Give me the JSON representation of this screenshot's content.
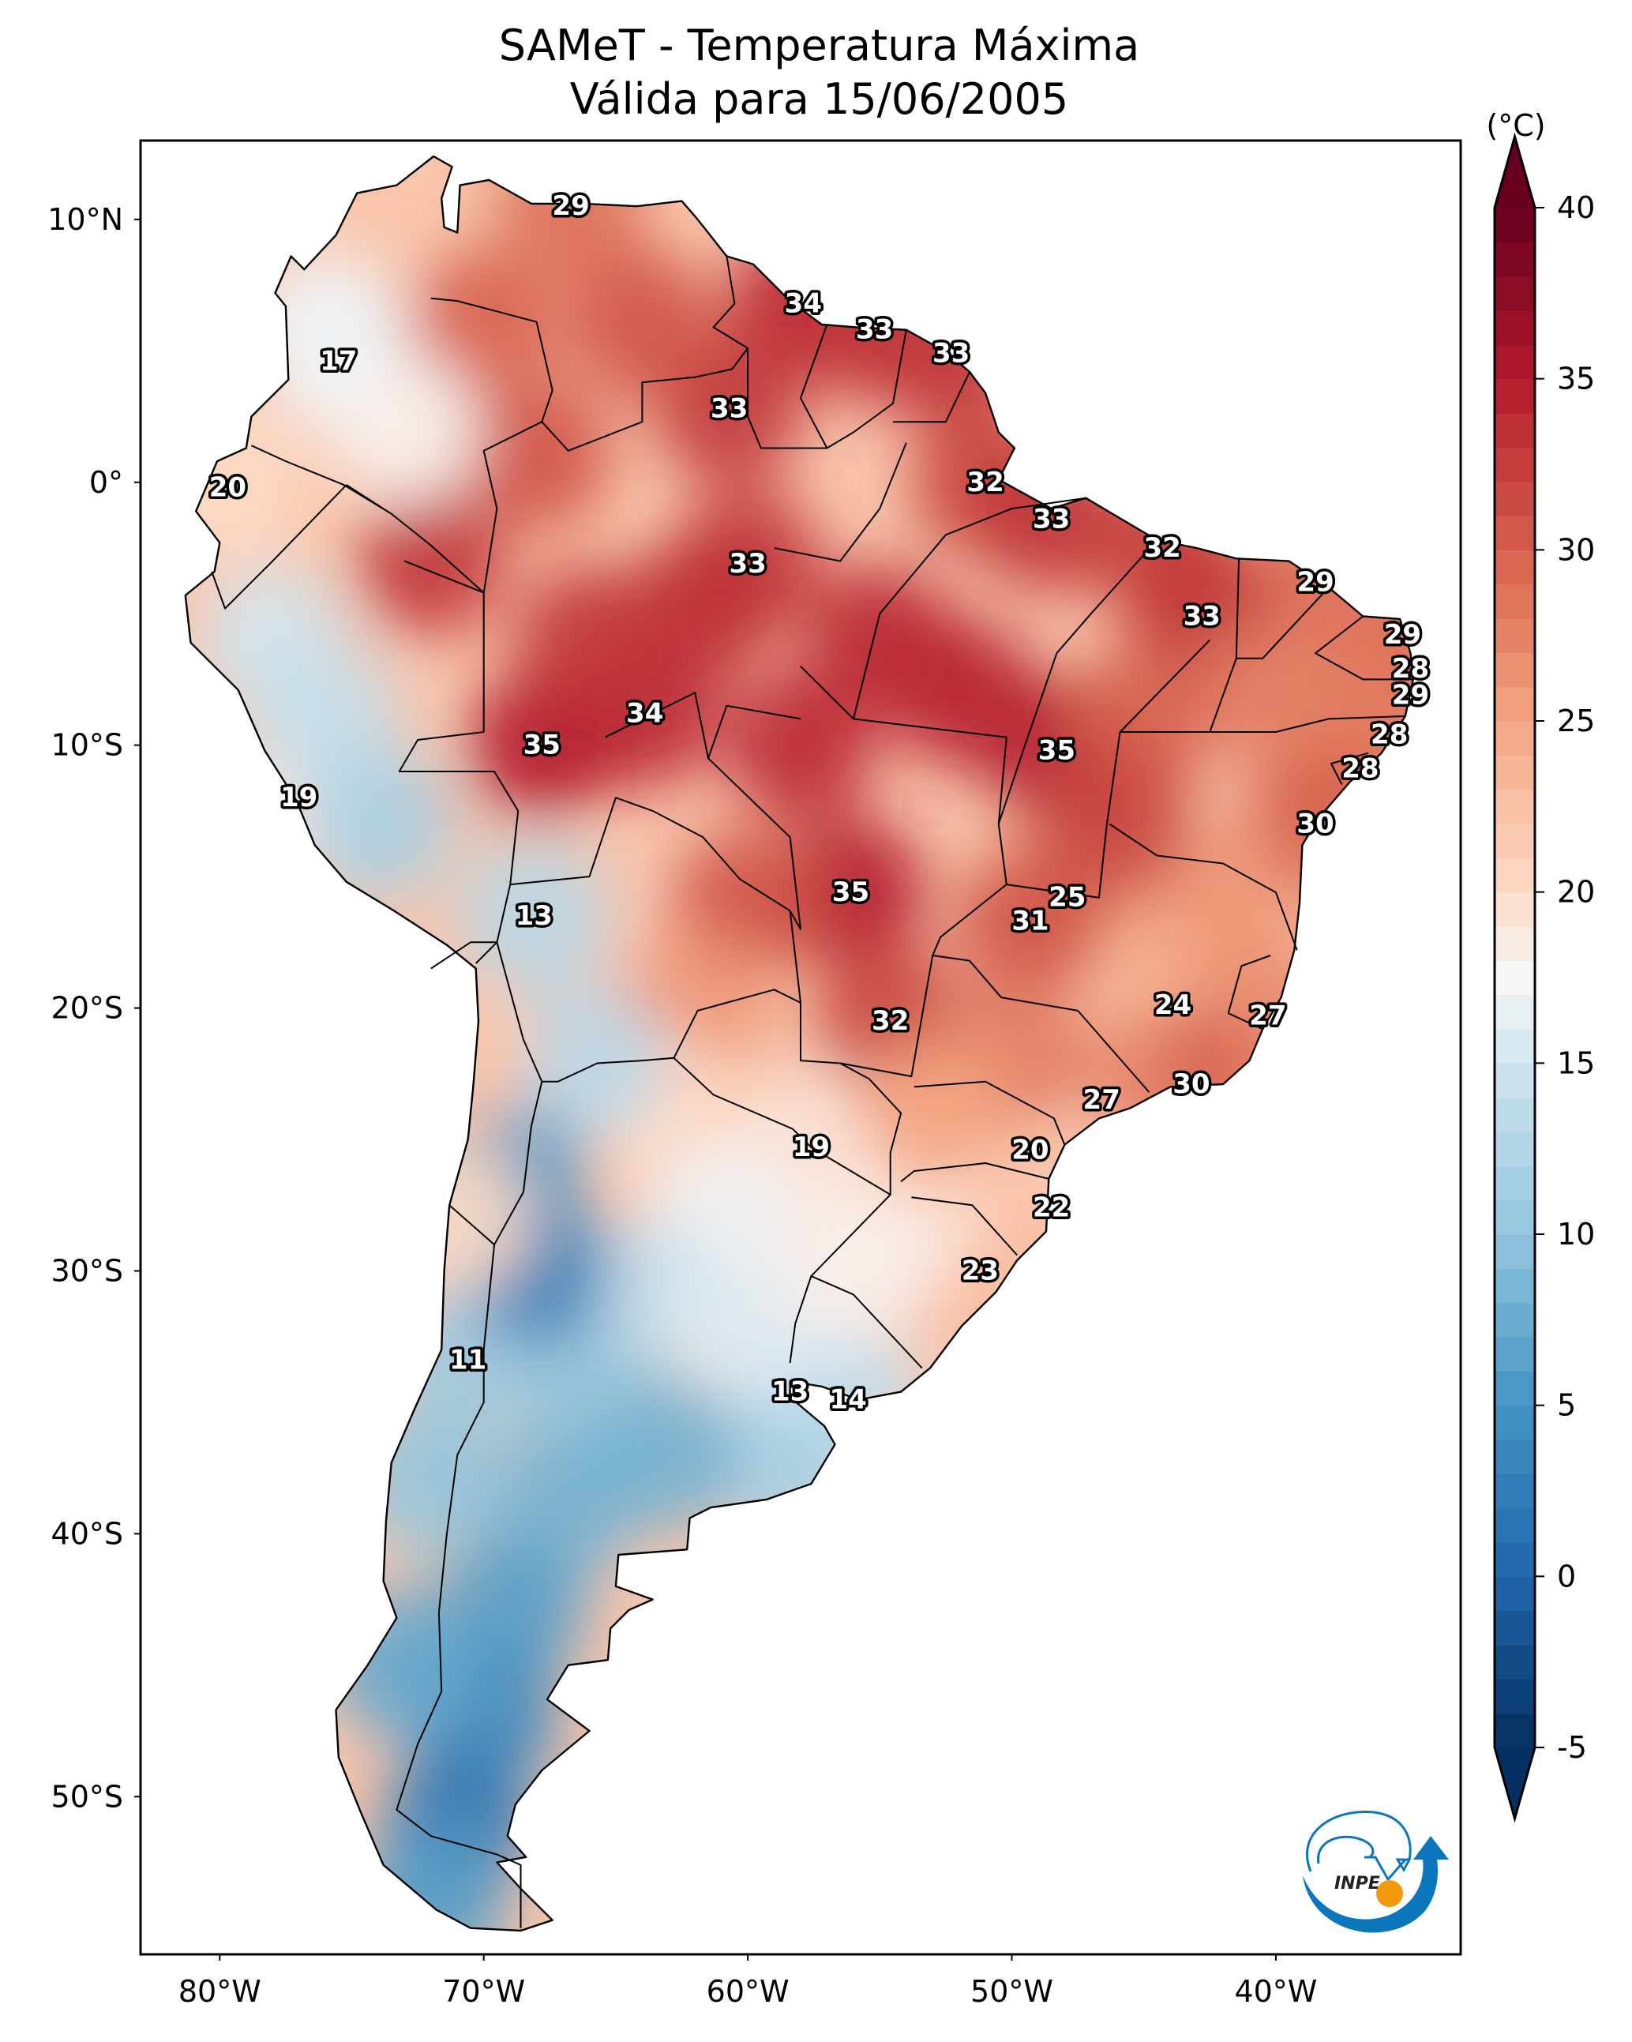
{
  "figure": {
    "title_line1": "SAMeT - Temperatura Máxima",
    "title_line2": "Válida para 15/06/2005",
    "logo_text": "INPE"
  },
  "chart_data": {
    "type": "heatmap",
    "title": "SAMeT - Temperatura Máxima — Válida para 15/06/2005",
    "variable": "Maximum temperature",
    "date": "15/06/2005",
    "xlabel": "",
    "ylabel": "",
    "lon_range": [
      -83,
      -33
    ],
    "lat_range": [
      -56,
      13
    ],
    "x_ticks": [
      {
        "value": -80,
        "label": "80°W"
      },
      {
        "value": -70,
        "label": "70°W"
      },
      {
        "value": -60,
        "label": "60°W"
      },
      {
        "value": -50,
        "label": "50°W"
      },
      {
        "value": -40,
        "label": "40°W"
      }
    ],
    "y_ticks": [
      {
        "value": 10,
        "label": "10°N"
      },
      {
        "value": 0,
        "label": "0°"
      },
      {
        "value": -10,
        "label": "10°S"
      },
      {
        "value": -20,
        "label": "20°S"
      },
      {
        "value": -30,
        "label": "30°S"
      },
      {
        "value": -40,
        "label": "40°S"
      },
      {
        "value": -50,
        "label": "50°S"
      }
    ],
    "colorbar": {
      "label": "(°C)",
      "colormap": "RdBu_r",
      "range": [
        -5,
        40
      ],
      "extend": "both",
      "ticks": [
        {
          "value": 40,
          "label": "40"
        },
        {
          "value": 35,
          "label": "35"
        },
        {
          "value": 30,
          "label": "30"
        },
        {
          "value": 25,
          "label": "25"
        },
        {
          "value": 20,
          "label": "20"
        },
        {
          "value": 15,
          "label": "15"
        },
        {
          "value": 10,
          "label": "10"
        },
        {
          "value": 5,
          "label": "5"
        },
        {
          "value": 0,
          "label": "0"
        },
        {
          "value": -5,
          "label": "-5"
        }
      ],
      "color_stops": [
        {
          "value": -5,
          "color": "#053061"
        },
        {
          "value": 0,
          "color": "#2166ac"
        },
        {
          "value": 5,
          "color": "#4393c3"
        },
        {
          "value": 10,
          "color": "#92c5de"
        },
        {
          "value": 15,
          "color": "#d1e5f0"
        },
        {
          "value": 17.5,
          "color": "#f7f7f7"
        },
        {
          "value": 20,
          "color": "#fddbc7"
        },
        {
          "value": 25,
          "color": "#f4a582"
        },
        {
          "value": 30,
          "color": "#d6604d"
        },
        {
          "value": 35,
          "color": "#b2182b"
        },
        {
          "value": 40,
          "color": "#67001f"
        }
      ]
    },
    "station_labels": [
      {
        "lon": -66.7,
        "lat": 10.5,
        "value": 29
      },
      {
        "lon": -75.5,
        "lat": 4.6,
        "value": 17
      },
      {
        "lon": -57.9,
        "lat": 6.8,
        "value": 34
      },
      {
        "lon": -55.2,
        "lat": 5.8,
        "value": 33
      },
      {
        "lon": -52.3,
        "lat": 4.9,
        "value": 33
      },
      {
        "lon": -60.7,
        "lat": 2.8,
        "value": 33
      },
      {
        "lon": -79.7,
        "lat": -0.2,
        "value": 20
      },
      {
        "lon": -51.0,
        "lat": 0.0,
        "value": 32
      },
      {
        "lon": -48.5,
        "lat": -1.4,
        "value": 33
      },
      {
        "lon": -44.3,
        "lat": -2.5,
        "value": 32
      },
      {
        "lon": -60.0,
        "lat": -3.1,
        "value": 33
      },
      {
        "lon": -38.5,
        "lat": -3.8,
        "value": 29
      },
      {
        "lon": -42.8,
        "lat": -5.1,
        "value": 33
      },
      {
        "lon": -35.2,
        "lat": -5.8,
        "value": 29
      },
      {
        "lon": -34.9,
        "lat": -7.1,
        "value": 28
      },
      {
        "lon": -34.9,
        "lat": -8.1,
        "value": 29
      },
      {
        "lon": -35.7,
        "lat": -9.6,
        "value": 28
      },
      {
        "lon": -36.8,
        "lat": -10.9,
        "value": 28
      },
      {
        "lon": -38.5,
        "lat": -13.0,
        "value": 30
      },
      {
        "lon": -63.9,
        "lat": -8.8,
        "value": 34
      },
      {
        "lon": -67.8,
        "lat": -10.0,
        "value": 35
      },
      {
        "lon": -48.3,
        "lat": -10.2,
        "value": 35
      },
      {
        "lon": -77.0,
        "lat": -12.0,
        "value": 19
      },
      {
        "lon": -56.1,
        "lat": -15.6,
        "value": 35
      },
      {
        "lon": -47.9,
        "lat": -15.8,
        "value": 25
      },
      {
        "lon": -49.3,
        "lat": -16.7,
        "value": 31
      },
      {
        "lon": -68.1,
        "lat": -16.5,
        "value": 13
      },
      {
        "lon": -43.9,
        "lat": -19.9,
        "value": 24
      },
      {
        "lon": -40.3,
        "lat": -20.3,
        "value": 27
      },
      {
        "lon": -54.6,
        "lat": -20.5,
        "value": 32
      },
      {
        "lon": -43.2,
        "lat": -22.9,
        "value": 30
      },
      {
        "lon": -46.6,
        "lat": -23.5,
        "value": 27
      },
      {
        "lon": -57.6,
        "lat": -25.3,
        "value": 19
      },
      {
        "lon": -49.3,
        "lat": -25.4,
        "value": 20
      },
      {
        "lon": -48.5,
        "lat": -27.6,
        "value": 22
      },
      {
        "lon": -51.2,
        "lat": -30.0,
        "value": 23
      },
      {
        "lon": -70.6,
        "lat": -33.4,
        "value": 11
      },
      {
        "lon": -58.4,
        "lat": -34.6,
        "value": 13
      },
      {
        "lon": -56.2,
        "lat": -34.9,
        "value": 14
      }
    ]
  }
}
